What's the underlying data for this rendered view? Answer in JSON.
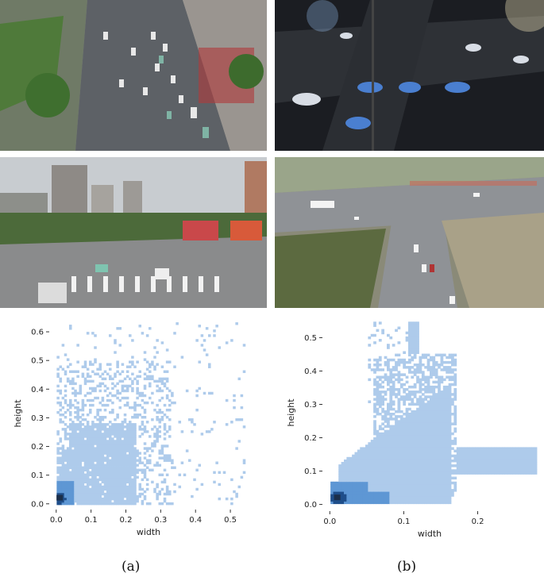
{
  "figure": {
    "photos": [
      {
        "scene": "daytime aerial view of multi-lane urban road with queued cars"
      },
      {
        "scene": "night aerial view of intersection with moving cars"
      },
      {
        "scene": "daytime street-level view of city intersection with buildings"
      },
      {
        "scene": "overhead view of road junction with green fields"
      }
    ],
    "captions": {
      "a": "(a)",
      "b": "(b)"
    }
  },
  "chart_data": [
    {
      "type": "heatmap",
      "panel": "a",
      "title": "",
      "xlabel": "width",
      "ylabel": "height",
      "xlim": [
        -0.02,
        0.55
      ],
      "ylim": [
        -0.02,
        0.65
      ],
      "xticks": [
        "0.0",
        "0.1",
        "0.2",
        "0.3",
        "0.4",
        "0.5"
      ],
      "yticks": [
        "0.0",
        "0.1",
        "0.2",
        "0.3",
        "0.4",
        "0.5",
        "0.6"
      ],
      "colors": {
        "low": "#aecbeb",
        "high": "#1f4e8a"
      },
      "grid": false,
      "peak": {
        "x": 0.01,
        "y": 0.02
      }
    },
    {
      "type": "heatmap",
      "panel": "b",
      "title": "",
      "xlabel": "width",
      "ylabel": "height",
      "xlim": [
        -0.01,
        0.28
      ],
      "ylim": [
        -0.02,
        0.57
      ],
      "xticks": [
        "0.0",
        "0.1",
        "0.2"
      ],
      "yticks": [
        "0.0",
        "0.1",
        "0.2",
        "0.3",
        "0.4",
        "0.5"
      ],
      "colors": {
        "low": "#aecbeb",
        "high": "#1f4e8a"
      },
      "grid": false,
      "peak": {
        "x": 0.01,
        "y": 0.02
      }
    }
  ]
}
